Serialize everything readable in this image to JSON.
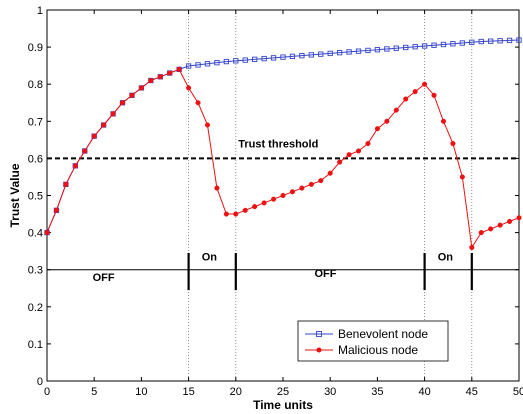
{
  "chart_data": {
    "type": "line",
    "xlabel": "Time units",
    "ylabel": "Trust Value",
    "xlim": [
      0,
      50
    ],
    "ylim": [
      0,
      1
    ],
    "x_ticks": [
      0,
      5,
      10,
      15,
      20,
      25,
      30,
      35,
      40,
      45,
      50
    ],
    "y_ticks": [
      0,
      0.1,
      0.2,
      0.3,
      0.4,
      0.5,
      0.6,
      0.7,
      0.8,
      0.9,
      1
    ],
    "x_tick_labels": [
      "0",
      "5",
      "10",
      "15",
      "20",
      "25",
      "30",
      "35",
      "40",
      "45",
      "50"
    ],
    "y_tick_labels": [
      "0",
      "0.1",
      "0.2",
      "0.3",
      "0.4",
      "0.5",
      "0.6",
      "0.7",
      "0.8",
      "0.9",
      "1"
    ],
    "grid": false,
    "legend_position": "bottom-right",
    "series": [
      {
        "name": "Benevolent node",
        "color": "#3344cc",
        "marker": "square",
        "x": [
          0,
          1,
          2,
          3,
          4,
          5,
          6,
          7,
          8,
          9,
          10,
          11,
          12,
          13,
          14,
          15,
          16,
          17,
          18,
          19,
          20,
          21,
          22,
          23,
          24,
          25,
          26,
          27,
          28,
          29,
          30,
          31,
          32,
          33,
          34,
          35,
          36,
          37,
          38,
          39,
          40,
          41,
          42,
          43,
          44,
          45,
          46,
          47,
          48,
          49,
          50
        ],
        "y": [
          0.4,
          0.46,
          0.53,
          0.58,
          0.62,
          0.66,
          0.69,
          0.72,
          0.75,
          0.77,
          0.79,
          0.81,
          0.82,
          0.83,
          0.84,
          0.849,
          0.852,
          0.855,
          0.858,
          0.861,
          0.863,
          0.865,
          0.867,
          0.869,
          0.871,
          0.873,
          0.875,
          0.877,
          0.879,
          0.881,
          0.883,
          0.885,
          0.887,
          0.889,
          0.891,
          0.893,
          0.895,
          0.897,
          0.899,
          0.901,
          0.903,
          0.905,
          0.907,
          0.909,
          0.911,
          0.913,
          0.915,
          0.916,
          0.917,
          0.918,
          0.919
        ]
      },
      {
        "name": "Malicious node",
        "color": "#ee1111",
        "marker": "circle",
        "x": [
          0,
          1,
          2,
          3,
          4,
          5,
          6,
          7,
          8,
          9,
          10,
          11,
          12,
          13,
          14,
          15,
          16,
          17,
          18,
          19,
          20,
          21,
          22,
          23,
          24,
          25,
          26,
          27,
          28,
          29,
          30,
          31,
          32,
          33,
          34,
          35,
          36,
          37,
          38,
          39,
          40,
          41,
          42,
          43,
          44,
          45,
          46,
          47,
          48,
          49,
          50
        ],
        "y": [
          0.4,
          0.46,
          0.53,
          0.58,
          0.62,
          0.66,
          0.69,
          0.72,
          0.75,
          0.77,
          0.79,
          0.81,
          0.82,
          0.83,
          0.84,
          0.79,
          0.75,
          0.69,
          0.52,
          0.45,
          0.45,
          0.46,
          0.47,
          0.48,
          0.49,
          0.5,
          0.51,
          0.52,
          0.53,
          0.54,
          0.56,
          0.59,
          0.61,
          0.62,
          0.64,
          0.68,
          0.7,
          0.73,
          0.76,
          0.78,
          0.8,
          0.77,
          0.7,
          0.64,
          0.55,
          0.36,
          0.4,
          0.41,
          0.42,
          0.43,
          0.44
        ]
      }
    ],
    "reference_lines": [
      {
        "label": "Trust threshold",
        "y": 0.6,
        "style": "dashed"
      },
      {
        "label": "",
        "y": 0.3,
        "style": "solid"
      }
    ],
    "vertical_dotted_lines": [
      15,
      20,
      40,
      45
    ],
    "phase_markers": [
      15,
      20,
      40,
      45
    ],
    "phase_labels": [
      {
        "text": "OFF",
        "x": 6,
        "y": 0.27
      },
      {
        "text": "On",
        "x": 17.2,
        "y": 0.325
      },
      {
        "text": "OFF",
        "x": 29.5,
        "y": 0.28
      },
      {
        "text": "On",
        "x": 42.2,
        "y": 0.325
      }
    ],
    "threshold_label": {
      "text": "Trust threshold",
      "x": 24.5,
      "y": 0.63
    }
  }
}
